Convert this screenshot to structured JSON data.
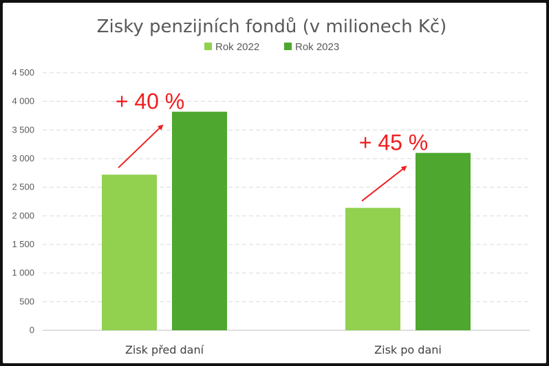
{
  "chart_data": {
    "type": "bar",
    "title": "Zisky penzijních fondů (v milionech Kč)",
    "categories": [
      "Zisk před daní",
      "Zisk po dani"
    ],
    "series": [
      {
        "name": "Rok 2022",
        "color": "#92d050",
        "values": [
          2720,
          2140
        ]
      },
      {
        "name": "Rok 2023",
        "color": "#4ea72e",
        "values": [
          3820,
          3100
        ]
      }
    ],
    "ylim": [
      0,
      4500
    ],
    "yticks": [
      0,
      500,
      1000,
      1500,
      2000,
      2500,
      3000,
      3500,
      4000,
      4500
    ],
    "ytick_labels": [
      "0",
      "500",
      "1 000",
      "1 500",
      "2 000",
      "2 500",
      "3 000",
      "3 500",
      "4 000",
      "4 500"
    ],
    "grid": true,
    "legend_position": "top",
    "annotations": [
      {
        "category_index": 0,
        "text": "+ 40 %",
        "color": "#f01e1e"
      },
      {
        "category_index": 1,
        "text": "+ 45 %",
        "color": "#f01e1e"
      }
    ]
  }
}
